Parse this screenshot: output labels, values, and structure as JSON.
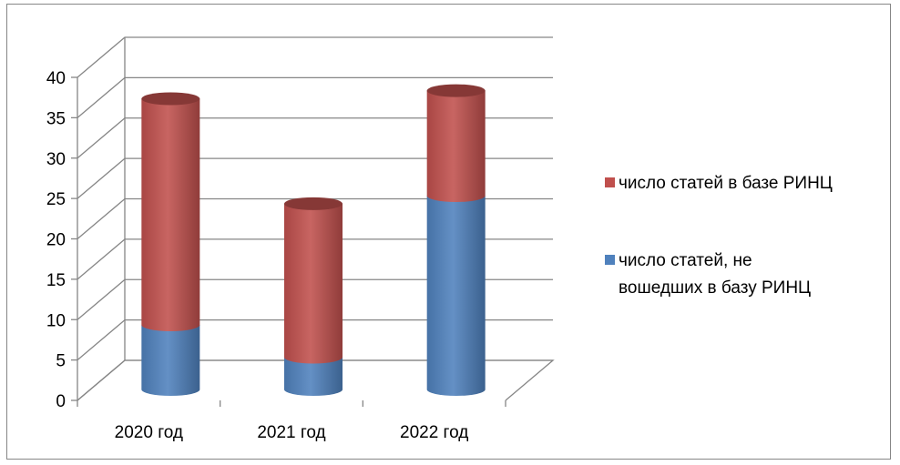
{
  "chart_data": {
    "type": "bar",
    "stacked": true,
    "style": "3d-cylinder",
    "categories": [
      "2020 год",
      "2021 год",
      "2022 год"
    ],
    "series": [
      {
        "name": "число статей, не вошедших в базу РИНЦ",
        "values": [
          8,
          4,
          24
        ],
        "color": "#4F81BD"
      },
      {
        "name": "число статей в базе РИНЦ",
        "values": [
          28,
          19,
          13
        ],
        "color": "#C0504D"
      }
    ],
    "ylim": [
      0,
      40
    ],
    "yticks": [
      0,
      5,
      10,
      15,
      20,
      25,
      30,
      35,
      40
    ],
    "grid": true,
    "legend_position": "right"
  },
  "legend": {
    "items": [
      {
        "series": 1,
        "lines": [
          "число статей в базе РИНЦ"
        ]
      },
      {
        "series": 0,
        "lines": [
          "число статей, не",
          "вошедших в базу РИНЦ"
        ]
      }
    ]
  }
}
